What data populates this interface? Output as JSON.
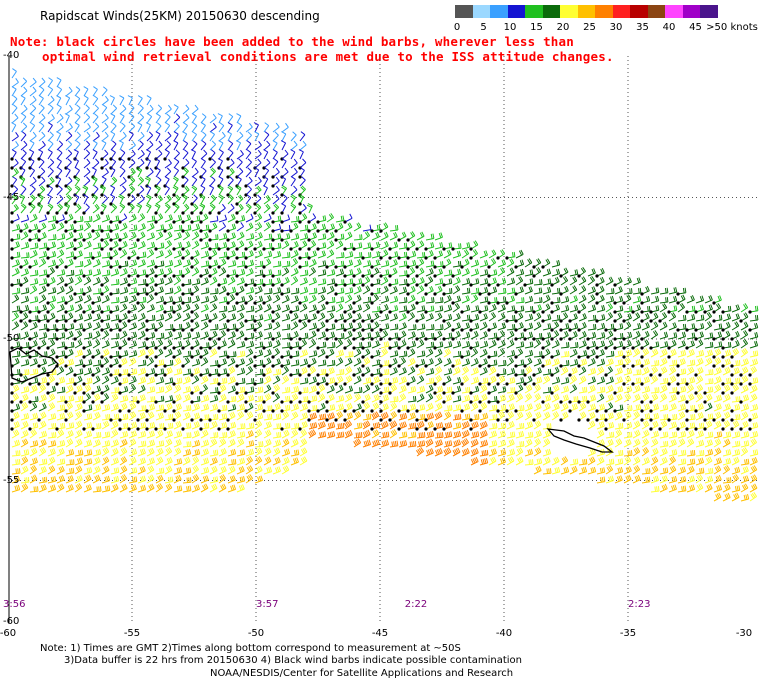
{
  "title": "Rapidscat Winds(25KM) 20150630 descending",
  "note_line1": "Note: black circles have been added to the wind barbs, wherever less than",
  "note_line2": "optimal wind retrieval conditions are met due to the ISS attitude changes.",
  "legend": {
    "colors": [
      "#555555",
      "#9bd8ff",
      "#3aa0ff",
      "#1414d2",
      "#20c020",
      "#0b6b0b",
      "#ffff33",
      "#ffc000",
      "#ff8000",
      "#ff2020",
      "#b80000",
      "#8b4513",
      "#ff44ff",
      "#a000c8",
      "#4a148c"
    ],
    "labels": [
      "0",
      "5",
      "10",
      "15",
      "20",
      "25",
      "30",
      "35",
      "40",
      "45",
      ">50 knots"
    ]
  },
  "lon_labels": [
    "-60",
    "-55",
    "-50",
    "-45",
    "-40",
    "-35",
    "-30"
  ],
  "lat_labels": [
    "-40",
    "-45",
    "-50",
    "-55",
    "-60"
  ],
  "times": [
    "3:56",
    "3:57",
    "2:22",
    "2:23"
  ],
  "footer_line1": "Note: 1) Times are GMT 2)Times along bottom correspond to measurement at ~50S",
  "footer_line2": "3)Data buffer is 22 hrs from 20150630 4) Black wind barbs indicate possible contamination",
  "footer_line3": "NOAA/NESDIS/Center for Satellite Applications and Research",
  "chart_data": {
    "type": "wind_barb_map",
    "lon_range": [
      -60,
      -30
    ],
    "lat_range": [
      -60,
      -40
    ],
    "speed_unit": "knots",
    "speed_bins": [
      0,
      5,
      10,
      15,
      20,
      25,
      30,
      35,
      40,
      45,
      50
    ],
    "swaths": [
      {
        "pass": "descending",
        "times": [
          "3:56",
          "3:57"
        ]
      },
      {
        "pass": "descending",
        "times": [
          "2:22",
          "2:23"
        ]
      }
    ]
  }
}
